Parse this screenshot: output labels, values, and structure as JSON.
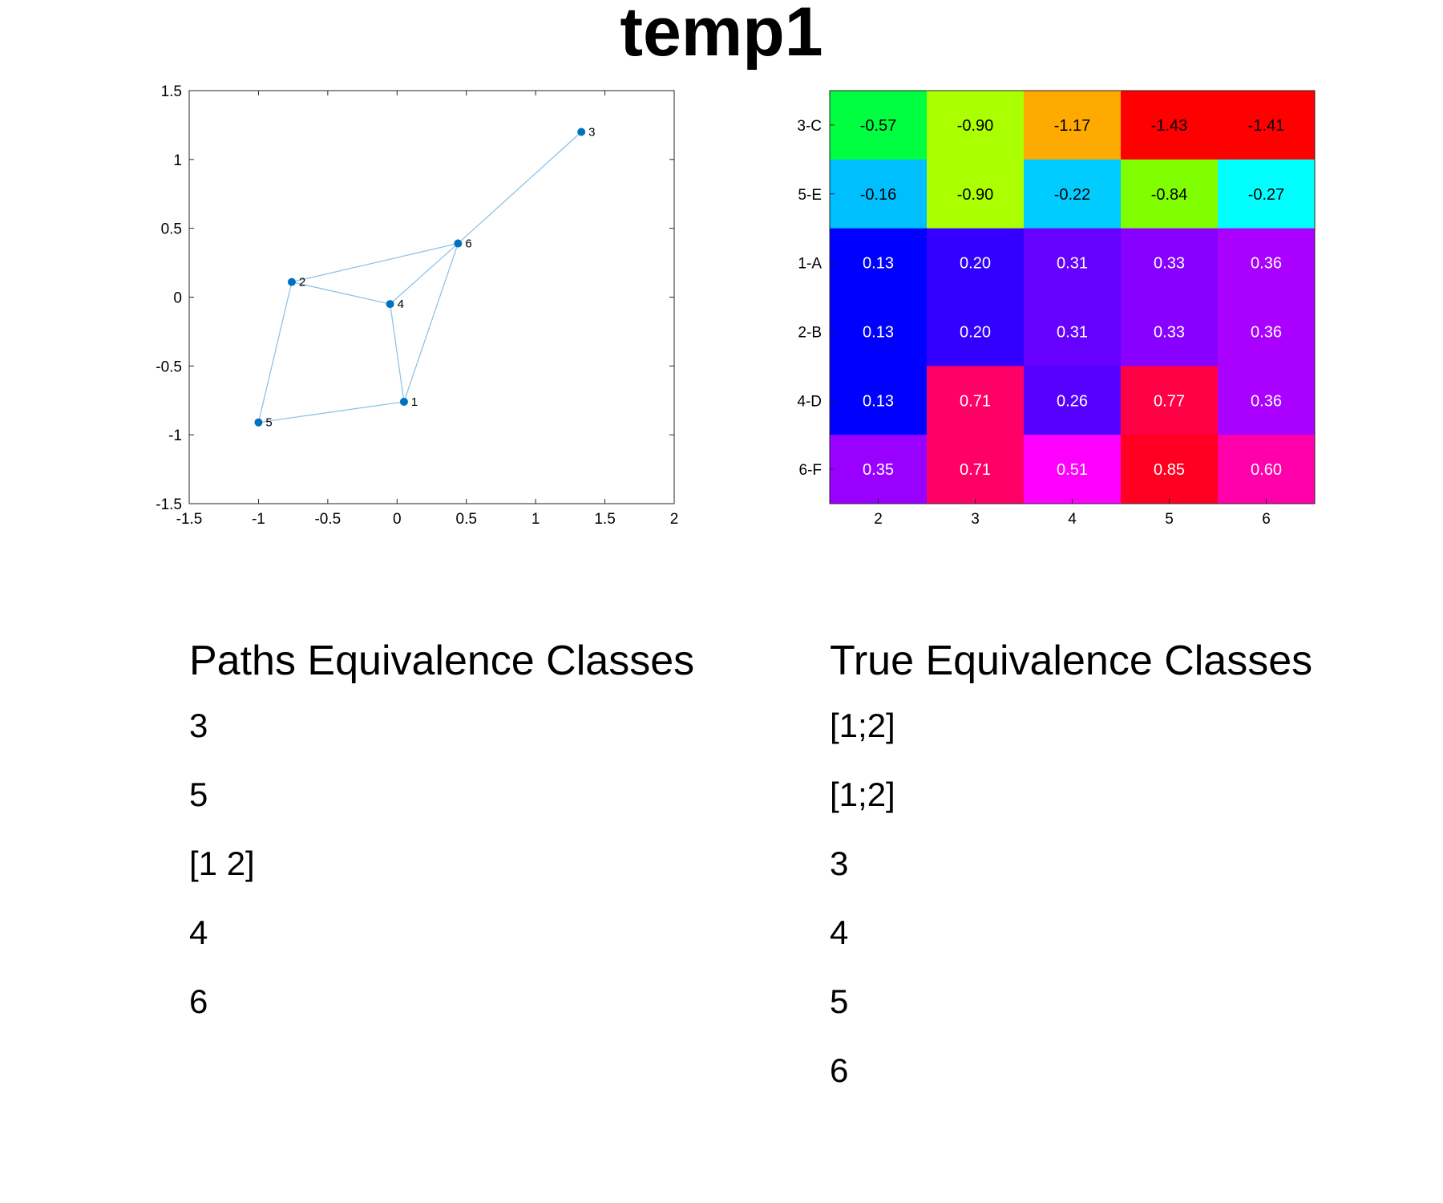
{
  "title": "temp1",
  "chart_data": [
    {
      "type": "scatter",
      "title": "",
      "xlabel": "",
      "ylabel": "",
      "xlim": [
        -1.5,
        2
      ],
      "ylim": [
        -1.5,
        1.5
      ],
      "xticks": [
        "-1.5",
        "-1",
        "-0.5",
        "0",
        "0.5",
        "1",
        "1.5",
        "2"
      ],
      "yticks": [
        "1.5",
        "1",
        "0.5",
        "0",
        "-0.5",
        "-1",
        "-1.5"
      ],
      "xtick_values": [
        -1.5,
        -1,
        -0.5,
        0,
        0.5,
        1,
        1.5,
        2
      ],
      "ytick_values": [
        1.5,
        1,
        0.5,
        0,
        -0.5,
        -1,
        -1.5
      ],
      "grid": false,
      "marker_color": "#0072BD",
      "edge_color": "#8EC3E8",
      "nodes": [
        {
          "label": "1",
          "x": 0.05,
          "y": -0.76
        },
        {
          "label": "2",
          "x": -0.76,
          "y": 0.11
        },
        {
          "label": "3",
          "x": 1.33,
          "y": 1.2
        },
        {
          "label": "4",
          "x": -0.05,
          "y": -0.05
        },
        {
          "label": "5",
          "x": -1.0,
          "y": -0.91
        },
        {
          "label": "6",
          "x": 0.44,
          "y": 0.39
        }
      ],
      "edges": [
        [
          "1",
          "4"
        ],
        [
          "1",
          "5"
        ],
        [
          "1",
          "6"
        ],
        [
          "2",
          "4"
        ],
        [
          "2",
          "5"
        ],
        [
          "2",
          "6"
        ],
        [
          "3",
          "6"
        ],
        [
          "4",
          "6"
        ]
      ]
    },
    {
      "type": "heatmap",
      "title": "",
      "x_categories": [
        "2",
        "3",
        "4",
        "5",
        "6"
      ],
      "y_categories": [
        "3-C",
        "5-E",
        "1-A",
        "2-B",
        "4-D",
        "6-F"
      ],
      "values": [
        [
          -0.57,
          -0.9,
          -1.17,
          -1.43,
          -1.41
        ],
        [
          -0.16,
          -0.9,
          -0.22,
          -0.84,
          -0.27
        ],
        [
          0.13,
          0.2,
          0.31,
          0.33,
          0.36
        ],
        [
          0.13,
          0.2,
          0.31,
          0.33,
          0.36
        ],
        [
          0.13,
          0.71,
          0.26,
          0.77,
          0.36
        ],
        [
          0.35,
          0.71,
          0.51,
          0.85,
          0.6
        ]
      ],
      "labels": [
        [
          "-0.57",
          "-0.90",
          "-1.17",
          "-1.43",
          "-1.41"
        ],
        [
          "-0.16",
          "-0.90",
          "-0.22",
          "-0.84",
          "-0.27"
        ],
        [
          "0.13",
          "0.20",
          "0.31",
          "0.33",
          "0.36"
        ],
        [
          "0.13",
          "0.20",
          "0.31",
          "0.33",
          "0.36"
        ],
        [
          "0.13",
          "0.71",
          "0.26",
          "0.77",
          "0.36"
        ],
        [
          "0.35",
          "0.71",
          "0.51",
          "0.85",
          "0.60"
        ]
      ],
      "colors": [
        [
          "#00FF40",
          "#AAFF00",
          "#FFAA00",
          "#FF0000",
          "#FF0000"
        ],
        [
          "#00BFFF",
          "#AAFF00",
          "#00CCFF",
          "#80FF00",
          "#00FFFF"
        ],
        [
          "#0000FF",
          "#3300FF",
          "#6600FF",
          "#8800FF",
          "#AA00FF"
        ],
        [
          "#0000FF",
          "#3300FF",
          "#6600FF",
          "#8800FF",
          "#AA00FF"
        ],
        [
          "#0000FF",
          "#FF0066",
          "#5500FF",
          "#FF0044",
          "#AA00FF"
        ],
        [
          "#9900FF",
          "#FF0066",
          "#FF00FF",
          "#FF0022",
          "#FF00AA"
        ]
      ],
      "text_colors": [
        [
          "#000000",
          "#000000",
          "#000000",
          "#000000",
          "#000000"
        ],
        [
          "#000000",
          "#000000",
          "#000000",
          "#000000",
          "#000000"
        ],
        [
          "#FFFFFF",
          "#FFFFFF",
          "#FFFFFF",
          "#FFFFFF",
          "#FFFFFF"
        ],
        [
          "#FFFFFF",
          "#FFFFFF",
          "#FFFFFF",
          "#FFFFFF",
          "#FFFFFF"
        ],
        [
          "#FFFFFF",
          "#FFFFFF",
          "#FFFFFF",
          "#FFFFFF",
          "#FFFFFF"
        ],
        [
          "#FFFFFF",
          "#FFFFFF",
          "#FFFFFF",
          "#FFFFFF",
          "#FFFFFF"
        ]
      ]
    }
  ],
  "paths_classes": {
    "heading": "Paths Equivalence Classes",
    "items": [
      "3",
      "5",
      "[1 2]",
      "4",
      "6"
    ]
  },
  "true_classes": {
    "heading": "True Equivalence Classes",
    "items": [
      "[1;2]",
      "[1;2]",
      "3",
      "4",
      "5",
      "6"
    ]
  }
}
